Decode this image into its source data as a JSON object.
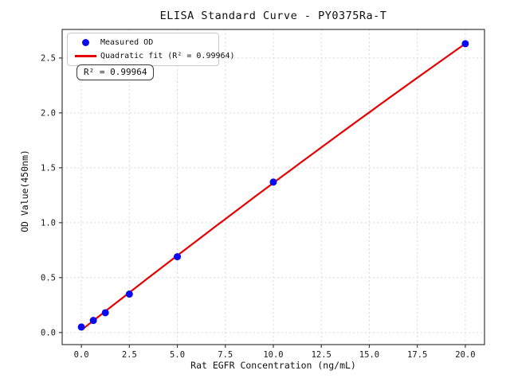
{
  "chart_data": {
    "type": "scatter",
    "title": "ELISA Standard Curve - PY0375Ra-T",
    "xlabel": "Rat EGFR Concentration (ng/mL)",
    "ylabel": "OD Value(450nm)",
    "x": [
      0,
      0.625,
      1.25,
      2.5,
      5,
      10,
      20
    ],
    "y": [
      0.05,
      0.11,
      0.18,
      0.35,
      0.69,
      1.37,
      2.63
    ],
    "series": [
      {
        "name": "Measured OD",
        "type": "scatter",
        "color": "#0a0af0"
      },
      {
        "name": "Quadratic fit (R² = 0.99964)",
        "type": "line",
        "color": "#e60000"
      }
    ],
    "fit": {
      "kind": "quadratic",
      "r_squared": "0.99964",
      "coefficients": {
        "a0": 0.022,
        "a1": 0.1376,
        "a2": -0.00036
      },
      "x_range": [
        0,
        20
      ]
    },
    "annotation": "R² = 0.99964",
    "xlim": [
      -1.0,
      21.0
    ],
    "ylim": [
      -0.11,
      2.76
    ],
    "x_tick_labels": [
      "0.0",
      "2.5",
      "5.0",
      "7.5",
      "10.0",
      "12.5",
      "15.0",
      "17.5",
      "20.0"
    ],
    "x_tick_values": [
      0,
      2.5,
      5,
      7.5,
      10,
      12.5,
      15,
      17.5,
      20
    ],
    "y_tick_labels": [
      "0.0",
      "0.5",
      "1.0",
      "1.5",
      "2.0",
      "2.5"
    ],
    "y_tick_values": [
      0,
      0.5,
      1,
      1.5,
      2,
      2.5
    ],
    "grid": true,
    "legend_position": "upper-left",
    "colors": {
      "scatter": "#0a0af0",
      "line": "#e60000",
      "grid": "#d9d9d9",
      "spine": "#3a3a3a",
      "text": "#1a1a1a",
      "background": "#ffffff"
    }
  }
}
